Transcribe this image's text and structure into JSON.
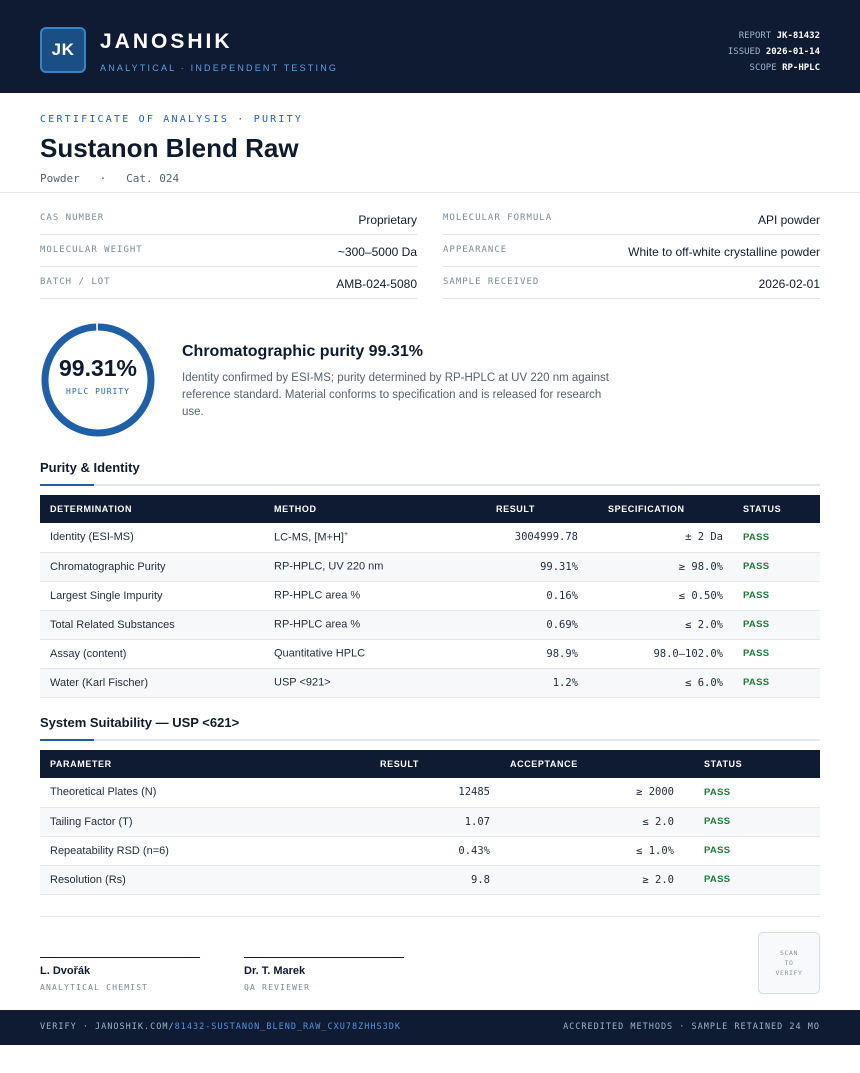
{
  "header": {
    "logo": "JK",
    "brand": "JANOSHIK",
    "brand_sub": "ANALYTICAL · INDEPENDENT TESTING",
    "report_label": "REPORT",
    "report_value": "JK-81432",
    "issued_label": "ISSUED",
    "issued_value": "2026-01-14",
    "scope_label": "SCOPE",
    "scope_value": "RP-HPLC"
  },
  "certificate": {
    "label": "CERTIFICATE OF ANALYSIS · PURITY",
    "title": "Sustanon Blend Raw",
    "subtitle": "Powder   ·   Cat. 024"
  },
  "properties": [
    {
      "key": "CAS NUMBER",
      "value": "Proprietary"
    },
    {
      "key": "MOLECULAR FORMULA",
      "value": "API powder"
    },
    {
      "key": "MOLECULAR WEIGHT",
      "value": "~300–5000 Da"
    },
    {
      "key": "APPEARANCE",
      "value": "White to off-white crystalline powder"
    },
    {
      "key": "BATCH / LOT",
      "value": "AMB-024-5080"
    },
    {
      "key": "SAMPLE RECEIVED",
      "value": "2026-02-01"
    }
  ],
  "purity": {
    "value": "99.31%",
    "fraction": 0.9931,
    "ring_label": "HPLC PURITY",
    "title": "Chromatographic purity 99.31%",
    "description": "Identity confirmed by ESI-MS; purity determined by RP-HPLC at UV 220 nm against reference standard. Material conforms to specification and is released for research use."
  },
  "purity_identity": {
    "title": "Purity & Identity",
    "headers": [
      "DETERMINATION",
      "METHOD",
      "RESULT",
      "SPECIFICATION",
      "STATUS"
    ],
    "rows": [
      {
        "determination": "Identity (ESI-MS)",
        "method": "LC-MS, [M+H]",
        "method_sup": "+",
        "result": "3004999.78",
        "spec": "± 2 Da",
        "status": "PASS"
      },
      {
        "determination": "Chromatographic Purity",
        "method": "RP-HPLC, UV 220 nm",
        "method_sup": "",
        "result": "99.31%",
        "spec": "≥ 98.0%",
        "status": "PASS"
      },
      {
        "determination": "Largest Single Impurity",
        "method": "RP-HPLC area %",
        "method_sup": "",
        "result": "0.16%",
        "spec": "≤ 0.50%",
        "status": "PASS"
      },
      {
        "determination": "Total Related Substances",
        "method": "RP-HPLC area %",
        "method_sup": "",
        "result": "0.69%",
        "spec": "≤ 2.0%",
        "status": "PASS"
      },
      {
        "determination": "Assay (content)",
        "method": "Quantitative HPLC",
        "method_sup": "",
        "result": "98.9%",
        "spec": "98.0–102.0%",
        "status": "PASS"
      },
      {
        "determination": "Water (Karl Fischer)",
        "method": "USP <921>",
        "method_sup": "",
        "result": "1.2%",
        "spec": "≤ 6.0%",
        "status": "PASS"
      }
    ]
  },
  "system_suitability": {
    "title": "System Suitability — USP <621>",
    "headers": [
      "PARAMETER",
      "RESULT",
      "ACCEPTANCE",
      "STATUS"
    ],
    "rows": [
      {
        "parameter": "Theoretical Plates (N)",
        "result": "12485",
        "acceptance": "≥ 2000",
        "status": "PASS"
      },
      {
        "parameter": "Tailing Factor (T)",
        "result": "1.07",
        "acceptance": "≤ 2.0",
        "status": "PASS"
      },
      {
        "parameter": "Repeatability RSD (n=6)",
        "result": "0.43%",
        "acceptance": "≤ 1.0%",
        "status": "PASS"
      },
      {
        "parameter": "Resolution (Rs)",
        "result": "9.8",
        "acceptance": "≥ 2.0",
        "status": "PASS"
      }
    ]
  },
  "signatures": [
    {
      "name": "L. Dvořák",
      "role": "ANALYTICAL CHEMIST"
    },
    {
      "name": "Dr. T. Marek",
      "role": "QA REVIEWER"
    }
  ],
  "qr": {
    "line1": "SCAN",
    "line2": "TO",
    "line3": "VERIFY"
  },
  "footer": {
    "verify_prefix": "VERIFY · JANOSHIK.COM/",
    "verify_link": "81432-SUSTANON_BLEND_RAW_CXU78ZHHS3DK",
    "right": "ACCREDITED METHODS · SAMPLE RETAINED 24 MO"
  },
  "colors": {
    "navy": "#0f1b33",
    "accent": "#1e5fa8",
    "pass": "#1f7a3a"
  }
}
